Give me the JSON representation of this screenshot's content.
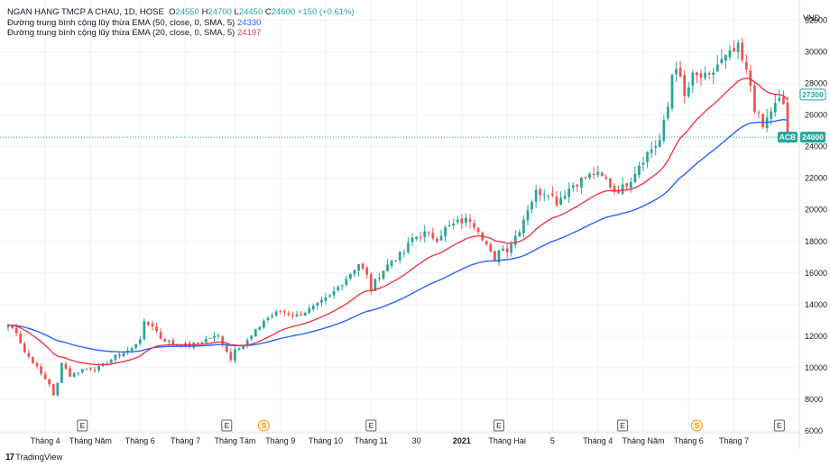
{
  "header": {
    "symbol_title": "NGAN HANG TMCP A CHAU, 1D, HOSE",
    "open_label": "O",
    "open": "24550",
    "high_label": "H",
    "high": "24700",
    "low_label": "L",
    "low": "24450",
    "close_label": "C",
    "close": "24600",
    "change": "+150 (+0.61%)",
    "ema50_label": "Đường trung bình cộng lũy thừa EMA (50, close, 0, SMA, 5)",
    "ema50_value": "24330",
    "ema20_label": "Đường trung bình cộng lũy thừa EMA (20, close, 0, SMA, 5)",
    "ema20_value": "24197"
  },
  "footer": {
    "logo_text": "TradingView"
  },
  "colors": {
    "up": "#26a69a",
    "down": "#ef5350",
    "ema50": "#2962ff",
    "ema20": "#f23645",
    "price_line": "#26a69a"
  },
  "chart_data": {
    "type": "candlestick",
    "currency": "VND",
    "ylim": [
      6000,
      32600
    ],
    "y_ticks": [
      "32000",
      "30000",
      "28000",
      "26000",
      "24000",
      "22000",
      "20000",
      "18000",
      "16000",
      "14000",
      "12000",
      "10000",
      "8000",
      "6000"
    ],
    "x_labels": [
      {
        "label": "Tháng 4",
        "i": 9
      },
      {
        "label": "Tháng Năm",
        "i": 20
      },
      {
        "label": "Tháng 6",
        "i": 32
      },
      {
        "label": "Tháng 7",
        "i": 43
      },
      {
        "label": "Tháng Tám",
        "i": 55
      },
      {
        "label": "Tháng 9",
        "i": 66
      },
      {
        "label": "Tháng 10",
        "i": 77
      },
      {
        "label": "Tháng 11",
        "i": 88
      },
      {
        "label": "30",
        "i": 99
      },
      {
        "label": "2021",
        "i": 110,
        "bold": true
      },
      {
        "label": "Tháng Hai",
        "i": 121
      },
      {
        "label": "5",
        "i": 132
      },
      {
        "label": "Tháng 4",
        "i": 143
      },
      {
        "label": "Tháng Năm",
        "i": 154
      },
      {
        "label": "Tháng 6",
        "i": 165
      },
      {
        "label": "Tháng 7",
        "i": 176
      }
    ],
    "events": [
      {
        "type": "E",
        "i": 18
      },
      {
        "type": "E",
        "i": 53
      },
      {
        "type": "S",
        "i": 62
      },
      {
        "type": "E",
        "i": 88
      },
      {
        "type": "E",
        "i": 119
      },
      {
        "type": "E",
        "i": 149
      },
      {
        "type": "S",
        "i": 167
      },
      {
        "type": "E",
        "i": 187
      }
    ],
    "price_labels": {
      "ema_tag": "27300",
      "ema_value": 27300,
      "symbol_tag": "ACB",
      "last": "24600",
      "last_value": 24600
    },
    "anchors": [
      [
        0,
        12700
      ],
      [
        2,
        12300
      ],
      [
        4,
        11000
      ],
      [
        6,
        10400
      ],
      [
        8,
        9600
      ],
      [
        10,
        9000
      ],
      [
        11,
        8200
      ],
      [
        12,
        9000
      ],
      [
        13,
        10400
      ],
      [
        15,
        9500
      ],
      [
        18,
        9900
      ],
      [
        22,
        10000
      ],
      [
        26,
        10700
      ],
      [
        30,
        11200
      ],
      [
        32,
        11900
      ],
      [
        33,
        12800
      ],
      [
        35,
        12700
      ],
      [
        37,
        11900
      ],
      [
        40,
        11500
      ],
      [
        44,
        11400
      ],
      [
        48,
        11800
      ],
      [
        51,
        12000
      ],
      [
        53,
        11100
      ],
      [
        54,
        10500
      ],
      [
        55,
        11300
      ],
      [
        57,
        11400
      ],
      [
        60,
        12300
      ],
      [
        62,
        13000
      ],
      [
        66,
        13600
      ],
      [
        70,
        13300
      ],
      [
        74,
        13800
      ],
      [
        78,
        14500
      ],
      [
        82,
        15700
      ],
      [
        85,
        16600
      ],
      [
        87,
        15800
      ],
      [
        88,
        15000
      ],
      [
        90,
        15900
      ],
      [
        93,
        16800
      ],
      [
        96,
        17300
      ],
      [
        98,
        18200
      ],
      [
        101,
        18500
      ],
      [
        104,
        18200
      ],
      [
        106,
        18800
      ],
      [
        109,
        19200
      ],
      [
        112,
        19400
      ],
      [
        114,
        18800
      ],
      [
        116,
        17800
      ],
      [
        118,
        16600
      ],
      [
        119,
        17600
      ],
      [
        121,
        17500
      ],
      [
        124,
        18800
      ],
      [
        126,
        20100
      ],
      [
        128,
        21100
      ],
      [
        131,
        21200
      ],
      [
        133,
        20500
      ],
      [
        135,
        21100
      ],
      [
        137,
        21600
      ],
      [
        139,
        21900
      ],
      [
        142,
        22300
      ],
      [
        145,
        21900
      ],
      [
        147,
        21200
      ],
      [
        149,
        21400
      ],
      [
        151,
        22000
      ],
      [
        153,
        22900
      ],
      [
        155,
        23600
      ],
      [
        158,
        24400
      ],
      [
        160,
        26500
      ],
      [
        161,
        28600
      ],
      [
        162,
        29200
      ],
      [
        164,
        27100
      ],
      [
        166,
        28400
      ],
      [
        168,
        28400
      ],
      [
        170,
        28300
      ],
      [
        172,
        29200
      ],
      [
        174,
        29600
      ],
      [
        176,
        30000
      ],
      [
        177,
        30200
      ],
      [
        178,
        29400
      ],
      [
        180,
        27900
      ],
      [
        181,
        26500
      ],
      [
        183,
        25200
      ],
      [
        185,
        26300
      ],
      [
        187,
        26900
      ],
      [
        188,
        26700
      ],
      [
        189,
        24600
      ]
    ]
  }
}
